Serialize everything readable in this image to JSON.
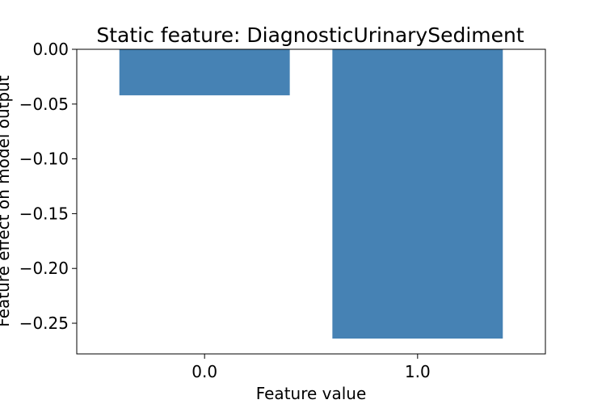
{
  "chart_data": {
    "type": "bar",
    "title": "Static feature: DiagnosticUrinarySediment",
    "xlabel": "Feature value",
    "ylabel": "Feature effect on model output",
    "categories": [
      "0.0",
      "1.0"
    ],
    "values": [
      -0.042,
      -0.264
    ],
    "ylim": [
      -0.278,
      0.0
    ],
    "yticks": [
      0.0,
      -0.05,
      -0.1,
      -0.15,
      -0.2,
      -0.25
    ],
    "ytick_labels": [
      "0.00",
      "−0.05",
      "−0.10",
      "−0.15",
      "−0.20",
      "−0.25"
    ],
    "bar_color": "#4682b4",
    "grid": false,
    "legend": "none"
  }
}
